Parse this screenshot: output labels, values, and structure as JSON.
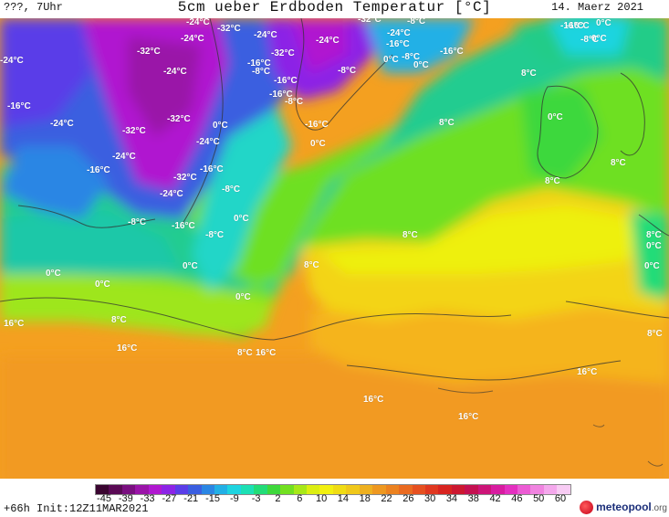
{
  "header": {
    "run_info": "???, 7Uhr",
    "title": "5cm ueber Erdboden Temperatur [°C]",
    "date": "14. Maerz 2021"
  },
  "map": {
    "labels": [
      {
        "text": "-24°C"
      },
      {
        "text": "-32°C"
      },
      {
        "text": "-24°C"
      },
      {
        "text": "-24°C"
      },
      {
        "text": "-32°C"
      },
      {
        "text": "-16°C"
      },
      {
        "text": "-16°C"
      },
      {
        "text": "-24°C"
      },
      {
        "text": "-16°C"
      },
      {
        "text": "-8°C"
      },
      {
        "text": "0°C"
      },
      {
        "text": "-8°C"
      },
      {
        "text": "0°C"
      },
      {
        "text": "-16°C"
      },
      {
        "text": "-32°C"
      },
      {
        "text": "-24°C"
      },
      {
        "text": "-16°C"
      },
      {
        "text": "-24°C"
      },
      {
        "text": "-32°C"
      },
      {
        "text": "-24°C"
      },
      {
        "text": "-16°C"
      },
      {
        "text": "-8°C"
      },
      {
        "text": "-24°C"
      },
      {
        "text": "-16°C"
      },
      {
        "text": "-8°C"
      },
      {
        "text": "-32°C"
      },
      {
        "text": "-24°C"
      },
      {
        "text": "0°C"
      },
      {
        "text": "-16°C"
      },
      {
        "text": "0°C"
      },
      {
        "text": "-16°C"
      },
      {
        "text": "-32°C"
      },
      {
        "text": "-24°C"
      },
      {
        "text": "-16°C"
      },
      {
        "text": "-32°C"
      },
      {
        "text": "-24°C"
      },
      {
        "text": "-8°C"
      },
      {
        "text": "-8°C"
      },
      {
        "text": "0°C"
      },
      {
        "text": "-8°C"
      },
      {
        "text": "-16°C"
      },
      {
        "text": "-8°C"
      },
      {
        "text": "0°C"
      },
      {
        "text": "0°C"
      },
      {
        "text": "0°C"
      },
      {
        "text": "0°C"
      },
      {
        "text": "8°C"
      },
      {
        "text": "16°C"
      },
      {
        "text": "16°C"
      },
      {
        "text": "8°C"
      },
      {
        "text": "16°C"
      },
      {
        "text": "8°C"
      },
      {
        "text": "8°C"
      },
      {
        "text": "8°C"
      },
      {
        "text": "8°C"
      },
      {
        "text": "0°C"
      },
      {
        "text": "8°C"
      },
      {
        "text": "0°C"
      },
      {
        "text": "-16°C"
      },
      {
        "text": "0°C"
      },
      {
        "text": "-8°C"
      },
      {
        "text": "8°C"
      },
      {
        "text": "8°C"
      },
      {
        "text": "0°C"
      },
      {
        "text": "0°C"
      },
      {
        "text": "8°C"
      },
      {
        "text": "16°C"
      },
      {
        "text": "16°C"
      },
      {
        "text": "16°C"
      }
    ]
  },
  "legend": {
    "ticks": [
      "-45",
      "-39",
      "-33",
      "-27",
      "-21",
      "-15",
      "-9",
      "-3",
      "2",
      "6",
      "10",
      "14",
      "18",
      "22",
      "26",
      "30",
      "34",
      "38",
      "42",
      "46",
      "50",
      "60"
    ],
    "colors": [
      "#3a0530",
      "#5a0a55",
      "#7a0f80",
      "#9a14a8",
      "#b018d0",
      "#8c24e6",
      "#5a3de8",
      "#3a5ee0",
      "#2a86e4",
      "#22b0e6",
      "#1ed4e0",
      "#1ce0b4",
      "#22dc78",
      "#3ed83c",
      "#72e020",
      "#a8e818",
      "#dcee12",
      "#f2f010",
      "#f0dc14",
      "#f0c81a",
      "#eeb020",
      "#ee9820",
      "#ec8220",
      "#ea6a20",
      "#e65020",
      "#e03820",
      "#d82420",
      "#cc1830",
      "#c41050",
      "#cc1478",
      "#d81ca0",
      "#e430c0",
      "#ec5cd4",
      "#f084e0",
      "#f4a8ec",
      "#f8ccf4"
    ]
  },
  "footer": {
    "init": "+66h Init:12Z11MAR2021",
    "logo_name": "meteopool",
    "logo_tld": ".org"
  }
}
